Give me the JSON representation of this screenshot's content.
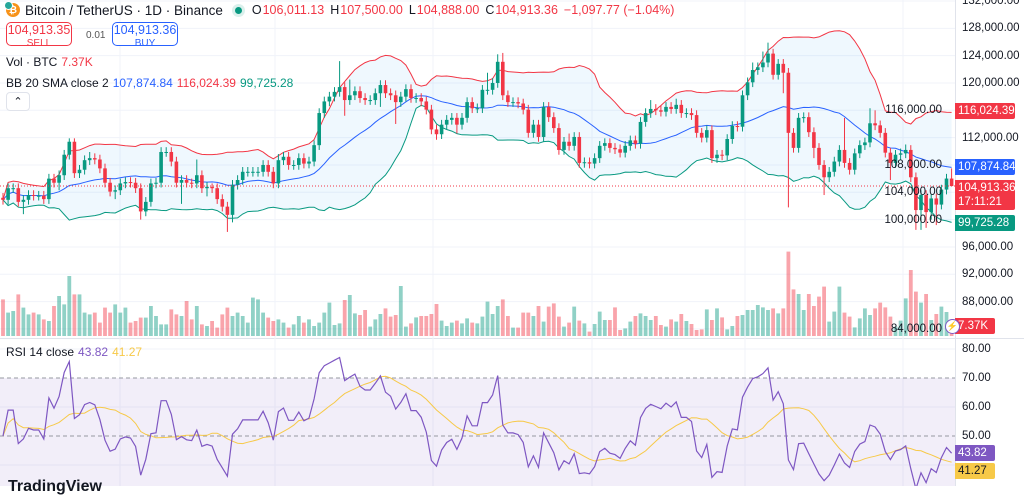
{
  "header": {
    "symbol": "Bitcoin / TetherUS · 1D · Binance",
    "o_label": "O",
    "o": "106,011.13",
    "h_label": "H",
    "h": "107,500.00",
    "l_label": "L",
    "l": "104,888.00",
    "c_label": "C",
    "c": "104,913.36",
    "change": "−1,097.77 (−1.04%)",
    "market_status_icon": "market-open-dot-icon"
  },
  "trade": {
    "sell_price": "104,913.35",
    "sell_label": "SELL",
    "spread": "0.01",
    "buy_price": "104,913.36",
    "buy_label": "BUY"
  },
  "legend": {
    "vol_label": "Vol · BTC",
    "vol_value": "7.37K",
    "bb_label": "BB 20 SMA close 2",
    "bb_basis": "107,874.84",
    "bb_upper": "116,024.39",
    "bb_lower": "99,725.28",
    "rsi_label": "RSI 14 close",
    "rsi_value": "43.82",
    "rsi_ma": "41.27",
    "collapse_icon": "chevron-up-icon"
  },
  "price_axis": [
    "132,000.00",
    "128,000.00",
    "124,000.00",
    "120,000.00",
    "116,000.00",
    "112,000.00",
    "108,000.00",
    "104,000.00",
    "100,000.00",
    "96,000.00",
    "92,000.00",
    "88,000.00",
    "84,000.00"
  ],
  "rsi_axis": [
    "80.00",
    "70.00",
    "60.00",
    "50.00"
  ],
  "badges": {
    "upper": "116,024.39",
    "basis": "107,874.84",
    "last": "104,913.36",
    "countdown": "17:11:21",
    "lower": "99,725.28",
    "volume": "7.37K",
    "rsi": "43.82",
    "rsi_ma": "41.27"
  },
  "colors": {
    "up": "#089981",
    "down": "#f23645",
    "bb_basis": "#2962ff",
    "bb_upper": "#f23645",
    "bb_lower": "#089981",
    "rsi": "#7e57c2",
    "rsi_ma": "#f7c948"
  },
  "logo": "TradingView",
  "chart_data": {
    "type": "candlestick",
    "title": "Bitcoin / TetherUS · 1D · Binance",
    "ylim": [
      82000,
      132000
    ],
    "y_ticks": [
      132000,
      128000,
      124000,
      120000,
      116000,
      112000,
      108000,
      104000,
      100000,
      96000,
      92000,
      88000,
      84000
    ],
    "last_price": 104913.36,
    "ohlc": [
      [
        103200,
        103900,
        102200,
        102900
      ],
      [
        102900,
        105300,
        102200,
        104600
      ],
      [
        104600,
        105300,
        103900,
        104600
      ],
      [
        104600,
        105300,
        101900,
        102600
      ],
      [
        102600,
        103600,
        100800,
        102900
      ],
      [
        102900,
        104300,
        102200,
        103600
      ],
      [
        103600,
        104300,
        102800,
        103500
      ],
      [
        103500,
        104200,
        102800,
        103500
      ],
      [
        103500,
        104200,
        102300,
        103000
      ],
      [
        103000,
        106700,
        102300,
        106000
      ],
      [
        106000,
        106700,
        104700,
        105400
      ],
      [
        105400,
        107200,
        104300,
        106500
      ],
      [
        106500,
        110200,
        105800,
        109500
      ],
      [
        109500,
        111900,
        108800,
        111400
      ],
      [
        111400,
        111900,
        106100,
        106800
      ],
      [
        106800,
        108000,
        106100,
        107300
      ],
      [
        107300,
        109400,
        106600,
        108700
      ],
      [
        108700,
        109900,
        108000,
        109000
      ],
      [
        109000,
        109700,
        108100,
        108800
      ],
      [
        108800,
        109500,
        106800,
        107500
      ],
      [
        107500,
        108200,
        104700,
        105400
      ],
      [
        105400,
        106100,
        103400,
        104100
      ],
      [
        104100,
        105000,
        103000,
        104300
      ],
      [
        104300,
        106000,
        103600,
        105300
      ],
      [
        105300,
        106200,
        104600,
        105500
      ],
      [
        105500,
        106200,
        104700,
        105400
      ],
      [
        105400,
        106100,
        103900,
        104600
      ],
      [
        104600,
        105300,
        100000,
        101200
      ],
      [
        101200,
        103300,
        100500,
        102600
      ],
      [
        102600,
        106000,
        101900,
        105300
      ],
      [
        105300,
        106100,
        104600,
        105400
      ],
      [
        105400,
        110600,
        104700,
        109900
      ],
      [
        109900,
        110600,
        109200,
        109900
      ],
      [
        109900,
        110600,
        107800,
        108500
      ],
      [
        108500,
        109200,
        104700,
        105400
      ],
      [
        105400,
        106500,
        102300,
        105800
      ],
      [
        105800,
        106500,
        104700,
        105400
      ],
      [
        105400,
        106000,
        104600,
        105300
      ],
      [
        105300,
        108800,
        104600,
        106500
      ],
      [
        106500,
        107200,
        103900,
        104600
      ],
      [
        104600,
        105500,
        103400,
        104800
      ],
      [
        104800,
        105300,
        103900,
        104600
      ],
      [
        104600,
        105300,
        102300,
        103000
      ],
      [
        103000,
        103700,
        101200,
        101900
      ],
      [
        101900,
        102600,
        98200,
        100700
      ],
      [
        100700,
        105800,
        99600,
        105100
      ],
      [
        105100,
        106500,
        104400,
        105800
      ],
      [
        105800,
        107700,
        105100,
        107000
      ],
      [
        107000,
        107700,
        106300,
        107000
      ],
      [
        107000,
        107700,
        106300,
        107000
      ],
      [
        107000,
        107700,
        106300,
        107000
      ],
      [
        107000,
        108700,
        106300,
        108000
      ],
      [
        108000,
        108700,
        106300,
        107000
      ],
      [
        107000,
        107700,
        104600,
        105300
      ],
      [
        105300,
        109600,
        104600,
        108700
      ],
      [
        108700,
        109900,
        108000,
        109200
      ],
      [
        109200,
        109900,
        107300,
        108000
      ],
      [
        108000,
        108700,
        107300,
        108000
      ],
      [
        108000,
        109700,
        107300,
        109000
      ],
      [
        109000,
        109700,
        107500,
        108200
      ],
      [
        108200,
        109200,
        107500,
        108500
      ],
      [
        108500,
        111600,
        107800,
        110900
      ],
      [
        110900,
        116300,
        110200,
        115600
      ],
      [
        115600,
        118000,
        114900,
        117300
      ],
      [
        117300,
        118700,
        116600,
        118000
      ],
      [
        118000,
        119400,
        117300,
        118700
      ],
      [
        118700,
        123200,
        118000,
        119400
      ],
      [
        119400,
        120100,
        115200,
        117500
      ],
      [
        117500,
        120500,
        116800,
        118200
      ],
      [
        118200,
        119500,
        117500,
        118800
      ],
      [
        118800,
        119500,
        117100,
        117800
      ],
      [
        117800,
        118500,
        116800,
        117500
      ],
      [
        117500,
        118200,
        116800,
        117500
      ],
      [
        117500,
        119200,
        116800,
        118500
      ],
      [
        118500,
        120400,
        116500,
        119700
      ],
      [
        119700,
        120400,
        117800,
        118500
      ],
      [
        118500,
        119200,
        117500,
        118200
      ],
      [
        118200,
        118900,
        114000,
        117200
      ],
      [
        117200,
        118700,
        116500,
        118000
      ],
      [
        118000,
        119800,
        117300,
        119100
      ],
      [
        119100,
        119800,
        117100,
        117800
      ],
      [
        117800,
        118500,
        117100,
        117800
      ],
      [
        117800,
        118500,
        116600,
        117300
      ],
      [
        117300,
        118000,
        115400,
        116100
      ],
      [
        116100,
        116800,
        112500,
        113200
      ],
      [
        113200,
        113900,
        111700,
        112500
      ],
      [
        112500,
        114600,
        111800,
        113900
      ],
      [
        113900,
        115300,
        113200,
        114600
      ],
      [
        114600,
        115600,
        113900,
        114900
      ],
      [
        114900,
        115600,
        112600,
        113900
      ],
      [
        113900,
        115600,
        113200,
        114900
      ],
      [
        114900,
        117900,
        114200,
        117200
      ],
      [
        117200,
        117900,
        115600,
        116300
      ],
      [
        116300,
        117000,
        115600,
        116300
      ],
      [
        116300,
        119700,
        115600,
        119000
      ],
      [
        119000,
        121500,
        118300,
        119000
      ],
      [
        119000,
        120700,
        118300,
        120000
      ],
      [
        120000,
        124200,
        119300,
        123100
      ],
      [
        123100,
        124400,
        117500,
        118200
      ],
      [
        118200,
        118900,
        116500,
        117200
      ],
      [
        117200,
        117900,
        116500,
        117200
      ],
      [
        117200,
        117900,
        116300,
        117000
      ],
      [
        117000,
        117700,
        115400,
        116100
      ],
      [
        116100,
        116800,
        112000,
        112700
      ],
      [
        112700,
        114600,
        112000,
        113900
      ],
      [
        113900,
        114600,
        111400,
        112100
      ],
      [
        112100,
        117200,
        111400,
        116500
      ],
      [
        116500,
        117200,
        114300,
        115000
      ],
      [
        115000,
        115700,
        112700,
        113400
      ],
      [
        113400,
        114100,
        109500,
        110200
      ],
      [
        110200,
        112100,
        109500,
        111400
      ],
      [
        111400,
        112600,
        110100,
        110800
      ],
      [
        110800,
        112800,
        110100,
        112100
      ],
      [
        112100,
        112800,
        107600,
        108300
      ],
      [
        108300,
        109100,
        107600,
        108400
      ],
      [
        108400,
        109100,
        107500,
        108200
      ],
      [
        108200,
        109700,
        107500,
        109000
      ],
      [
        109000,
        111500,
        108300,
        110800
      ],
      [
        110800,
        111900,
        110100,
        111200
      ],
      [
        111200,
        111900,
        109800,
        110500
      ],
      [
        110500,
        111200,
        109600,
        110300
      ],
      [
        110300,
        111000,
        109100,
        109800
      ],
      [
        109800,
        111500,
        109100,
        110800
      ],
      [
        110800,
        112300,
        110100,
        111600
      ],
      [
        111600,
        112300,
        110400,
        111100
      ],
      [
        111100,
        115000,
        110400,
        114300
      ],
      [
        114300,
        116300,
        113600,
        115600
      ],
      [
        115600,
        117500,
        114900,
        116200
      ],
      [
        116200,
        116900,
        115300,
        116000
      ],
      [
        116000,
        116700,
        115100,
        115800
      ],
      [
        115800,
        117200,
        115100,
        116500
      ],
      [
        116500,
        117200,
        115500,
        116200
      ],
      [
        116200,
        117700,
        115500,
        116800
      ],
      [
        116800,
        117500,
        114900,
        115600
      ],
      [
        115600,
        116300,
        114900,
        115600
      ],
      [
        115600,
        116300,
        114600,
        115300
      ],
      [
        115300,
        116000,
        112000,
        112700
      ],
      [
        112700,
        113400,
        111300,
        112000
      ],
      [
        112000,
        113800,
        111300,
        113100
      ],
      [
        113100,
        113800,
        108300,
        109000
      ],
      [
        109000,
        110200,
        108300,
        109500
      ],
      [
        109500,
        110200,
        108700,
        109400
      ],
      [
        109400,
        112500,
        108700,
        111800
      ],
      [
        111800,
        114400,
        111100,
        113700
      ],
      [
        113700,
        114400,
        112900,
        113600
      ],
      [
        113600,
        118900,
        112900,
        118200
      ],
      [
        118200,
        120800,
        117500,
        120100
      ],
      [
        120100,
        123000,
        119400,
        121900
      ],
      [
        121900,
        123000,
        121200,
        122300
      ],
      [
        122300,
        124600,
        121600,
        123000
      ],
      [
        123000,
        125900,
        122300,
        124300
      ],
      [
        124300,
        125000,
        120500,
        121200
      ],
      [
        121200,
        123500,
        120500,
        122800
      ],
      [
        122800,
        123500,
        118500,
        121500
      ],
      [
        121500,
        122200,
        101800,
        112700
      ],
      [
        112700,
        113400,
        109800,
        110500
      ],
      [
        110500,
        115600,
        109800,
        114900
      ],
      [
        114900,
        115700,
        114200,
        115000
      ],
      [
        115000,
        115700,
        112100,
        112800
      ],
      [
        112800,
        113500,
        109000,
        110500
      ],
      [
        110500,
        111200,
        107300,
        108000
      ],
      [
        108000,
        108700,
        103600,
        106200
      ],
      [
        106200,
        107700,
        105500,
        107000
      ],
      [
        107000,
        109200,
        106300,
        108500
      ],
      [
        108500,
        110900,
        107800,
        110200
      ],
      [
        110200,
        114900,
        107600,
        108300
      ],
      [
        108300,
        109000,
        106600,
        107300
      ],
      [
        107300,
        110400,
        106600,
        109700
      ],
      [
        109700,
        111600,
        109000,
        110900
      ],
      [
        110900,
        112000,
        110200,
        111300
      ],
      [
        111300,
        116300,
        110600,
        114100
      ],
      [
        114100,
        116000,
        113100,
        113800
      ],
      [
        113800,
        114500,
        112000,
        112700
      ],
      [
        112700,
        113400,
        109100,
        109800
      ],
      [
        109800,
        110500,
        105800,
        108300
      ],
      [
        108300,
        110200,
        107600,
        109500
      ],
      [
        109500,
        110400,
        108800,
        109700
      ],
      [
        109700,
        111000,
        109000,
        110200
      ],
      [
        110200,
        110900,
        105500,
        106200
      ],
      [
        106200,
        106900,
        98500,
        101400
      ],
      [
        101400,
        104300,
        98500,
        103600
      ],
      [
        103600,
        104300,
        98800,
        101100
      ],
      [
        101100,
        103800,
        100000,
        103100
      ],
      [
        103100,
        103800,
        99200,
        102200
      ],
      [
        102200,
        105100,
        101500,
        104400
      ],
      [
        104400,
        106700,
        103700,
        106011.13
      ],
      [
        106011.13,
        107500,
        104888,
        104913.36
      ]
    ],
    "volume": [
      18300,
      11700,
      12500,
      20800,
      14200,
      10800,
      11700,
      10800,
      8300,
      7500,
      15000,
      20000,
      15800,
      30000,
      20800,
      20800,
      11700,
      10800,
      11700,
      6700,
      14200,
      11700,
      15800,
      11700,
      14200,
      6700,
      7500,
      9200,
      9200,
      15000,
      10000,
      5800,
      5800,
      13300,
      10800,
      10000,
      17500,
      8300,
      15000,
      5800,
      5000,
      7500,
      4200,
      10800,
      14200,
      10000,
      11700,
      10000,
      6700,
      19200,
      18300,
      11700,
      9200,
      7500,
      8300,
      6700,
      4200,
      5800,
      10000,
      6700,
      8300,
      5000,
      6700,
      11700,
      16700,
      5500,
      6300,
      18000,
      20500,
      11300,
      10500,
      13000,
      4700,
      8300,
      11000,
      13800,
      9700,
      10500,
      25000,
      4700,
      6300,
      9300,
      10000,
      10000,
      11000,
      16000,
      7700,
      5000,
      6700,
      7700,
      6300,
      8800,
      6700,
      6300,
      9700,
      17200,
      11000,
      15000,
      18300,
      10000,
      4200,
      4200,
      11700,
      11700,
      10000,
      15000,
      7200,
      14700,
      16300,
      9700,
      4700,
      6700,
      14700,
      7700,
      6300,
      2200,
      6000,
      12200,
      8000,
      8000,
      14300,
      3000,
      3800,
      7200,
      10000,
      11300,
      10000,
      8000,
      10000,
      5500,
      4700,
      8300,
      7200,
      11000,
      7500,
      6000,
      3000,
      3300,
      13300,
      8000,
      13800,
      9300,
      3300,
      5000,
      10000,
      10500,
      13000,
      13000,
      15500,
      14300,
      13000,
      13800,
      11300,
      13800,
      42200,
      23300,
      21000,
      13000,
      21000,
      15000,
      19700,
      24700,
      7200,
      12200,
      24700,
      11700,
      9700,
      4300,
      8800,
      13800,
      10500,
      13800,
      16700,
      14300,
      9700,
      4700,
      7700,
      18800,
      33000,
      22200,
      16700,
      21000,
      8000,
      11000,
      14700,
      12000,
      7370
    ],
    "indicators": {
      "bollinger": {
        "length": 20,
        "source": "close",
        "mult": 2
      },
      "rsi": {
        "length": 14,
        "source": "close",
        "ma_length": 14,
        "levels": [
          70,
          50
        ]
      }
    },
    "rsi_ylim": [
      33,
      84
    ],
    "grid": true
  }
}
